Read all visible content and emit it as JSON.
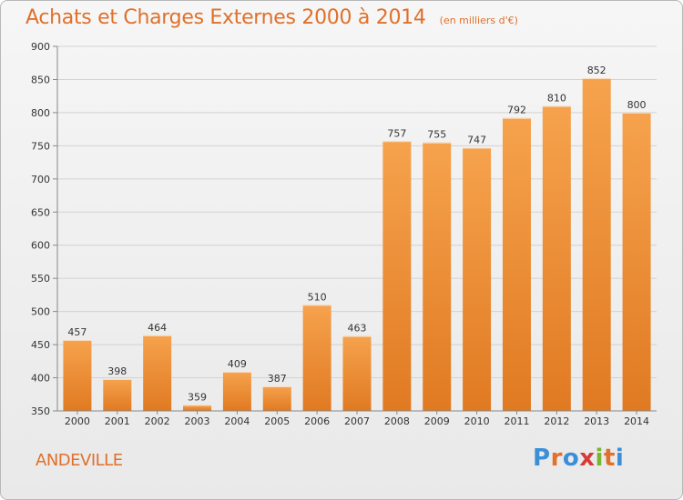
{
  "header": {
    "title": "Achats et Charges Externes 2000 à 2014",
    "subtitle": "(en milliers d'€)"
  },
  "footer": {
    "place": "ANDEVILLE",
    "logo_letters": [
      "P",
      "r",
      "o",
      "x",
      "i",
      "t",
      "i"
    ],
    "logo_colors": [
      "#3a8fd8",
      "#e0702a",
      "#3a8fd8",
      "#d83a3a",
      "#7ab52e",
      "#e0702a",
      "#3a8fd8"
    ]
  },
  "chart_data": {
    "type": "bar",
    "title": "Achats et Charges Externes 2000 à 2014",
    "subtitle": "(en milliers d'€)",
    "categories": [
      "2000",
      "2001",
      "2002",
      "2003",
      "2004",
      "2005",
      "2006",
      "2007",
      "2008",
      "2009",
      "2010",
      "2011",
      "2012",
      "2013",
      "2014"
    ],
    "values": [
      457,
      398,
      464,
      359,
      409,
      387,
      510,
      463,
      757,
      755,
      747,
      792,
      810,
      852,
      800
    ],
    "ylim": [
      350,
      900
    ],
    "yticks": [
      350,
      400,
      450,
      500,
      550,
      600,
      650,
      700,
      750,
      800,
      850,
      900
    ],
    "grid": true,
    "bar_color_top": "#f6a24d",
    "bar_color_bottom": "#e07a22"
  }
}
